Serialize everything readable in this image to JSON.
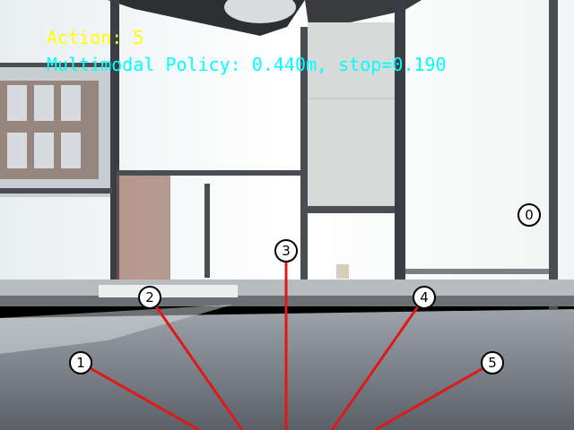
{
  "hud": {
    "action_text": "Action: 5",
    "policy_text": "Multimodal Policy: 0.440m, stop=0.190",
    "action_color": "#ffff00",
    "policy_color": "#00ffff"
  },
  "action_markers": [
    {
      "label": "0"
    },
    {
      "label": "1"
    },
    {
      "label": "2"
    },
    {
      "label": "3"
    },
    {
      "label": "4"
    },
    {
      "label": "5"
    }
  ],
  "trajectory_color": "#e01818"
}
